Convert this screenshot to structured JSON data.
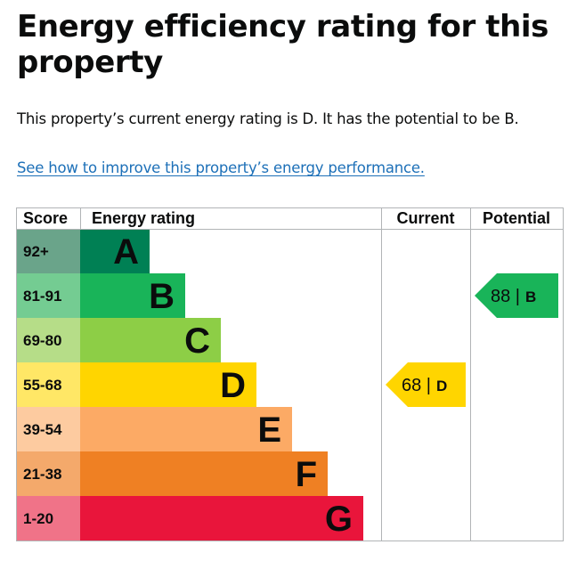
{
  "page": {
    "title": "Energy efficiency rating for this property",
    "summary": "This property’s current energy rating is D. It has the potential to be B.",
    "improve_link": "See how to improve this property’s energy performance."
  },
  "chart_data": {
    "type": "bar",
    "columns": {
      "score": "Score",
      "rating": "Energy rating",
      "current": "Current",
      "potential": "Potential"
    },
    "bands": [
      {
        "letter": "A",
        "range": "92+",
        "color": "#008054",
        "score_bg": "#6aa48a",
        "text_color": "#0b0c0c"
      },
      {
        "letter": "B",
        "range": "81-91",
        "color": "#19b459",
        "score_bg": "#74cc92",
        "text_color": "#0b0c0c"
      },
      {
        "letter": "C",
        "range": "69-80",
        "color": "#8dce46",
        "score_bg": "#b6dd88",
        "text_color": "#0b0c0c"
      },
      {
        "letter": "D",
        "range": "55-68",
        "color": "#ffd500",
        "score_bg": "#ffe766",
        "text_color": "#0b0c0c"
      },
      {
        "letter": "E",
        "range": "39-54",
        "color": "#fcaa65",
        "score_bg": "#fdcba0",
        "text_color": "#0b0c0c"
      },
      {
        "letter": "F",
        "range": "21-38",
        "color": "#ef8023",
        "score_bg": "#f4a96b",
        "text_color": "#0b0c0c"
      },
      {
        "letter": "G",
        "range": "1-20",
        "color": "#e9153b",
        "score_bg": "#f07388",
        "text_color": "#0b0c0c"
      }
    ],
    "current": {
      "score": 68,
      "letter": "D",
      "label": "68 | ",
      "color": "#ffd500"
    },
    "potential": {
      "score": 88,
      "letter": "B",
      "label": "88 | ",
      "color": "#19b459"
    }
  }
}
